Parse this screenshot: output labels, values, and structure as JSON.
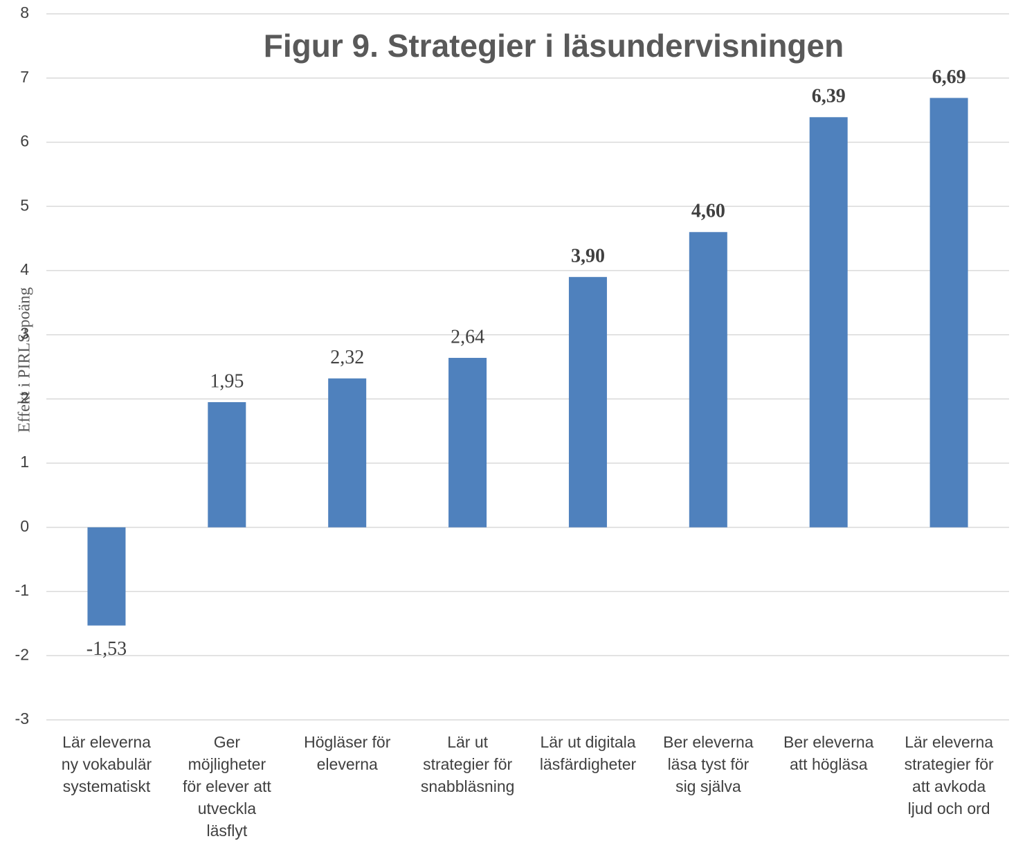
{
  "chart_data": {
    "type": "bar",
    "title": "Figur 9. Strategier i läsundervisningen",
    "y_label": "Effekt i PIRLS-poäng",
    "categories": [
      "Lär eleverna\nny vokabulär\nsystematiskt",
      "Ger\nmöjligheter\nför elever att\nutveckla\nläsflyt",
      "Högläser för\neleverna",
      "Lär ut\nstrategier för\nsnabbläsning",
      "Lär ut digitala\nläsfärdigheter",
      "Ber eleverna\nläsa tyst för\nsig själva",
      "Ber eleverna\natt högläsa",
      "Lär eleverna\nstrategier för\natt avkoda\nljud och ord"
    ],
    "values": [
      -1.53,
      1.95,
      2.32,
      2.64,
      3.9,
      4.6,
      6.39,
      6.69
    ],
    "value_labels": [
      "-1,53",
      "1,95",
      "2,32",
      "2,64",
      "3,90",
      "4,60",
      "6,39",
      "6,69"
    ],
    "value_label_bold": [
      false,
      false,
      false,
      false,
      true,
      true,
      true,
      true
    ],
    "color": "#4f81bd",
    "ylim": [
      -3,
      8
    ],
    "yticks": [
      -3,
      -2,
      -1,
      0,
      1,
      2,
      3,
      4,
      5,
      6,
      7,
      8
    ],
    "grid": true
  }
}
